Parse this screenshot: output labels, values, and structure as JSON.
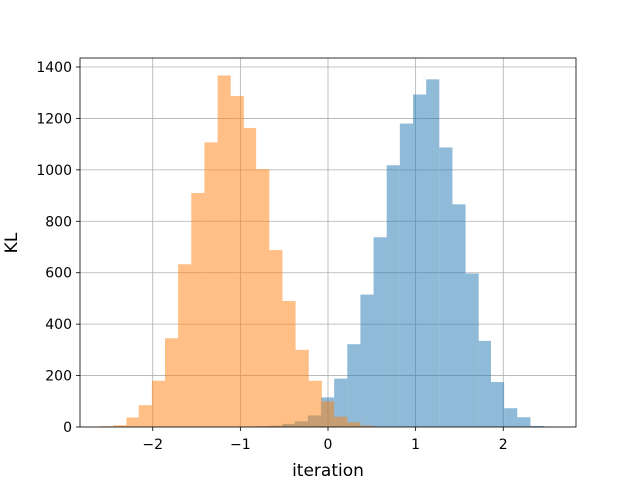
{
  "chart_data": {
    "type": "bar",
    "title": "",
    "xlabel": "iteration",
    "ylabel": "KL",
    "xlim": [
      -2.83,
      2.83
    ],
    "ylim": [
      0,
      1435
    ],
    "xticks": [
      -2,
      -1,
      0,
      1,
      2
    ],
    "xtick_labels": [
      "−2",
      "−1",
      "0",
      "1",
      "2"
    ],
    "yticks": [
      0,
      200,
      400,
      600,
      800,
      1000,
      1200,
      1400
    ],
    "grid": true,
    "legend": "none",
    "series": [
      {
        "color": "#1f77b4",
        "alpha": 0.5,
        "bin_edges": [
          -0.82,
          -0.67,
          -0.52,
          -0.38,
          -0.23,
          -0.08,
          0.07,
          0.22,
          0.37,
          0.52,
          0.67,
          0.82,
          0.97,
          1.12,
          1.27,
          1.42,
          1.57,
          1.72,
          1.86,
          2.01,
          2.16,
          2.31,
          2.46,
          2.57
        ],
        "counts": [
          3,
          5,
          12,
          22,
          45,
          115,
          188,
          322,
          515,
          738,
          1018,
          1180,
          1293,
          1352,
          1087,
          866,
          597,
          335,
          175,
          73,
          38,
          4,
          2
        ]
      },
      {
        "color": "#ff7f0e",
        "alpha": 0.5,
        "bin_edges": [
          -2.6,
          -2.45,
          -2.3,
          -2.16,
          -2.01,
          -1.86,
          -1.71,
          -1.56,
          -1.41,
          -1.26,
          -1.11,
          -0.96,
          -0.82,
          -0.67,
          -0.52,
          -0.37,
          -0.22,
          -0.07,
          0.07,
          0.22,
          0.37,
          0.52
        ],
        "counts": [
          3,
          7,
          37,
          85,
          180,
          345,
          633,
          910,
          1107,
          1367,
          1287,
          1163,
          1003,
          688,
          490,
          300,
          180,
          100,
          40,
          18,
          5
        ]
      }
    ]
  }
}
